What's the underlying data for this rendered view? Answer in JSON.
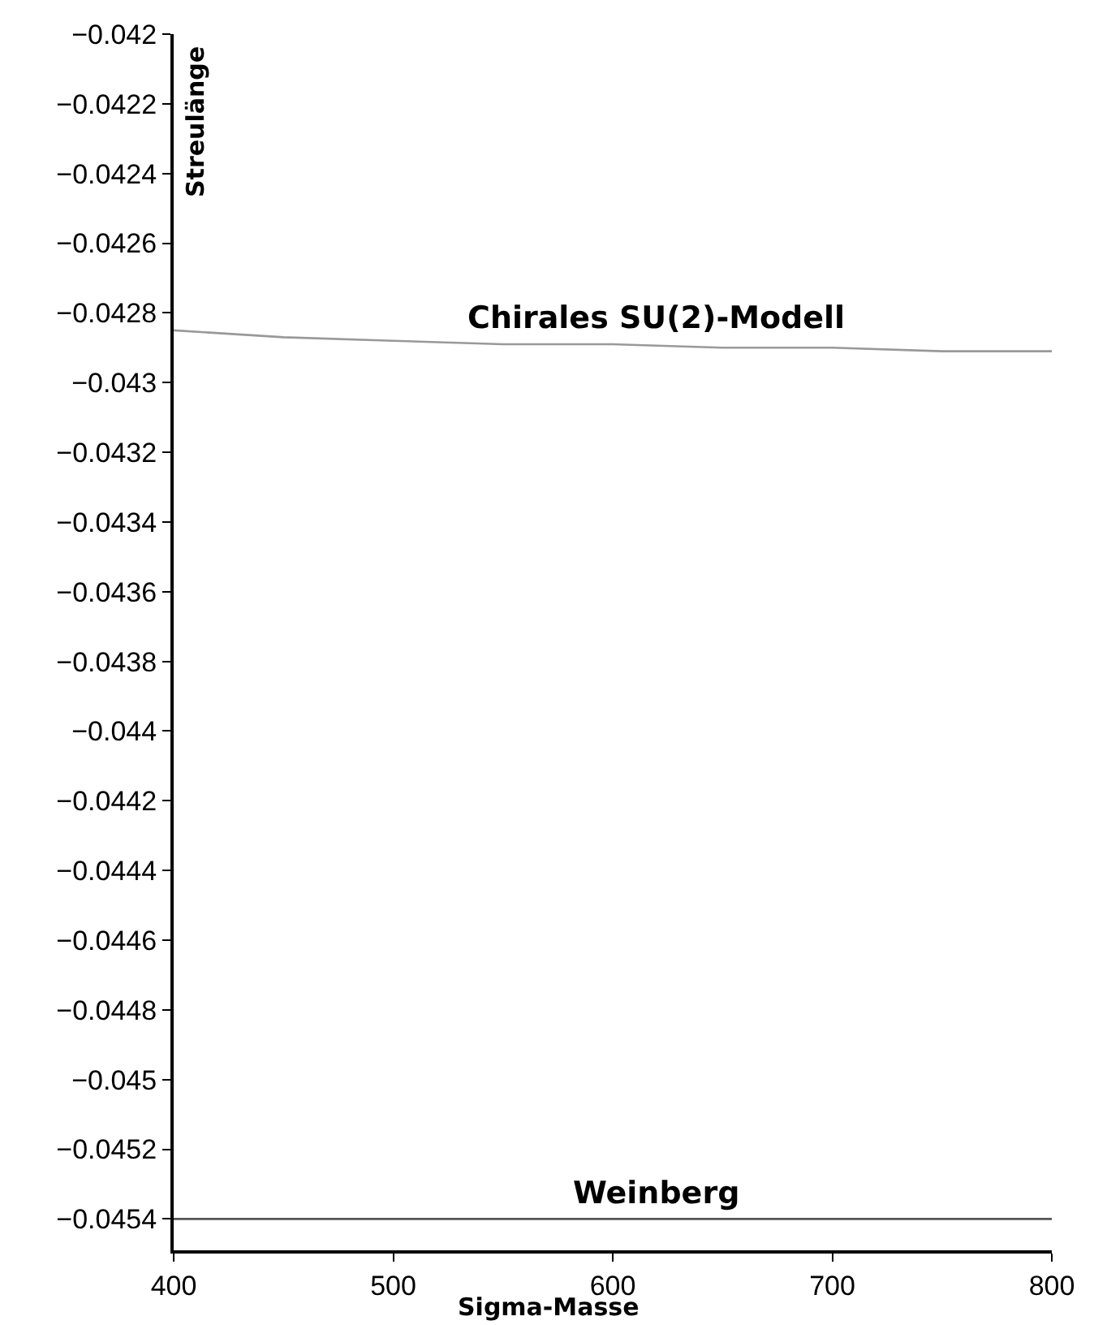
{
  "chart_data": {
    "type": "line",
    "xlabel": "Sigma-Masse",
    "ylabel": "Streulänge",
    "xlim": [
      400,
      800
    ],
    "xticks": [
      400,
      500,
      600,
      700,
      800
    ],
    "ylim": [
      -0.04549,
      -0.042
    ],
    "yticks": [
      {
        "value": -0.042,
        "label": "−0.042"
      },
      {
        "value": -0.0422,
        "label": "−0.0422"
      },
      {
        "value": -0.0424,
        "label": "−0.0424"
      },
      {
        "value": -0.0426,
        "label": "−0.0426"
      },
      {
        "value": -0.0428,
        "label": "−0.0428"
      },
      {
        "value": -0.043,
        "label": "−0.043"
      },
      {
        "value": -0.0432,
        "label": "−0.0432"
      },
      {
        "value": -0.0434,
        "label": "−0.0434"
      },
      {
        "value": -0.0436,
        "label": "−0.0436"
      },
      {
        "value": -0.0438,
        "label": "−0.0438"
      },
      {
        "value": -0.044,
        "label": "−0.044"
      },
      {
        "value": -0.0442,
        "label": "−0.0442"
      },
      {
        "value": -0.0444,
        "label": "−0.0444"
      },
      {
        "value": -0.0446,
        "label": "−0.0446"
      },
      {
        "value": -0.0448,
        "label": "−0.0448"
      },
      {
        "value": -0.045,
        "label": "−0.045"
      },
      {
        "value": -0.0452,
        "label": "−0.0452"
      },
      {
        "value": -0.0454,
        "label": "−0.0454"
      }
    ],
    "legend": false,
    "marker": "none",
    "line_style": "solid",
    "series": [
      {
        "name": "Chirales SU(2)-Modell",
        "color": "#999999",
        "x": [
          400,
          450,
          500,
          550,
          600,
          650,
          700,
          750,
          800
        ],
        "values": [
          -0.04285,
          -0.04287,
          -0.04288,
          -0.04289,
          -0.04289,
          -0.0429,
          -0.0429,
          -0.04291,
          -0.04291
        ]
      },
      {
        "name": "Weinberg",
        "color": "#555555",
        "x": [
          400,
          800
        ],
        "values": [
          -0.0454,
          -0.0454
        ]
      }
    ]
  }
}
